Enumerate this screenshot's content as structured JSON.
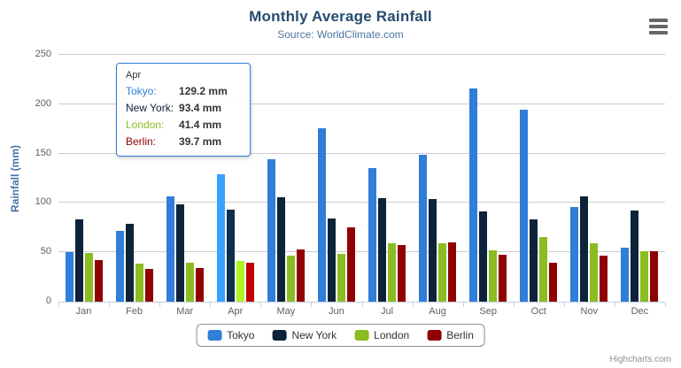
{
  "chart_data": {
    "type": "bar",
    "title": "Monthly Average Rainfall",
    "subtitle": "Source: WorldClimate.com",
    "xlabel": "",
    "ylabel": "Rainfall (mm)",
    "ylim": [
      0,
      250
    ],
    "yticks": [
      0,
      50,
      100,
      150,
      200,
      250
    ],
    "grid": true,
    "legend_position": "bottom",
    "unit": "mm",
    "categories": [
      "Jan",
      "Feb",
      "Mar",
      "Apr",
      "May",
      "Jun",
      "Jul",
      "Aug",
      "Sep",
      "Oct",
      "Nov",
      "Dec"
    ],
    "series": [
      {
        "name": "Tokyo",
        "color": "#2f7ed8",
        "values": [
          49.9,
          71.5,
          106.4,
          129.2,
          144.0,
          176.0,
          135.6,
          148.5,
          216.4,
          194.1,
          95.6,
          54.4
        ]
      },
      {
        "name": "New York",
        "color": "#0d233a",
        "values": [
          83.6,
          78.8,
          98.5,
          93.4,
          106.0,
          84.5,
          105.0,
          104.3,
          91.2,
          83.5,
          106.6,
          92.3
        ]
      },
      {
        "name": "London",
        "color": "#8bbc21",
        "values": [
          48.9,
          38.8,
          39.3,
          41.4,
          47.0,
          48.3,
          59.0,
          59.6,
          52.4,
          65.2,
          59.3,
          51.2
        ]
      },
      {
        "name": "Berlin",
        "color": "#910000",
        "values": [
          42.4,
          33.2,
          34.5,
          39.7,
          52.6,
          75.5,
          57.4,
          60.4,
          47.6,
          39.1,
          46.8,
          51.1
        ]
      }
    ],
    "highlighted_category": "Apr"
  },
  "tooltip": {
    "category": "Apr",
    "rows": [
      {
        "name": "Tokyo:",
        "value": "129.2 mm",
        "color": "#2f7ed8"
      },
      {
        "name": "New York:",
        "value": "93.4 mm",
        "color": "#0d233a"
      },
      {
        "name": "London:",
        "value": "41.4 mm",
        "color": "#8bbc21"
      },
      {
        "name": "Berlin:",
        "value": "39.7 mm",
        "color": "#910000"
      }
    ]
  },
  "colors": {
    "title": "#274b6d",
    "subtitle": "#4d759e",
    "axis_title": "#4572a7",
    "axis_labels": "#606060",
    "gridline": "#cccccc",
    "axis_line": "#c0d0e0",
    "legend_border": "#909090",
    "credits": "#909090"
  },
  "credits": {
    "label": "Highcharts.com"
  }
}
